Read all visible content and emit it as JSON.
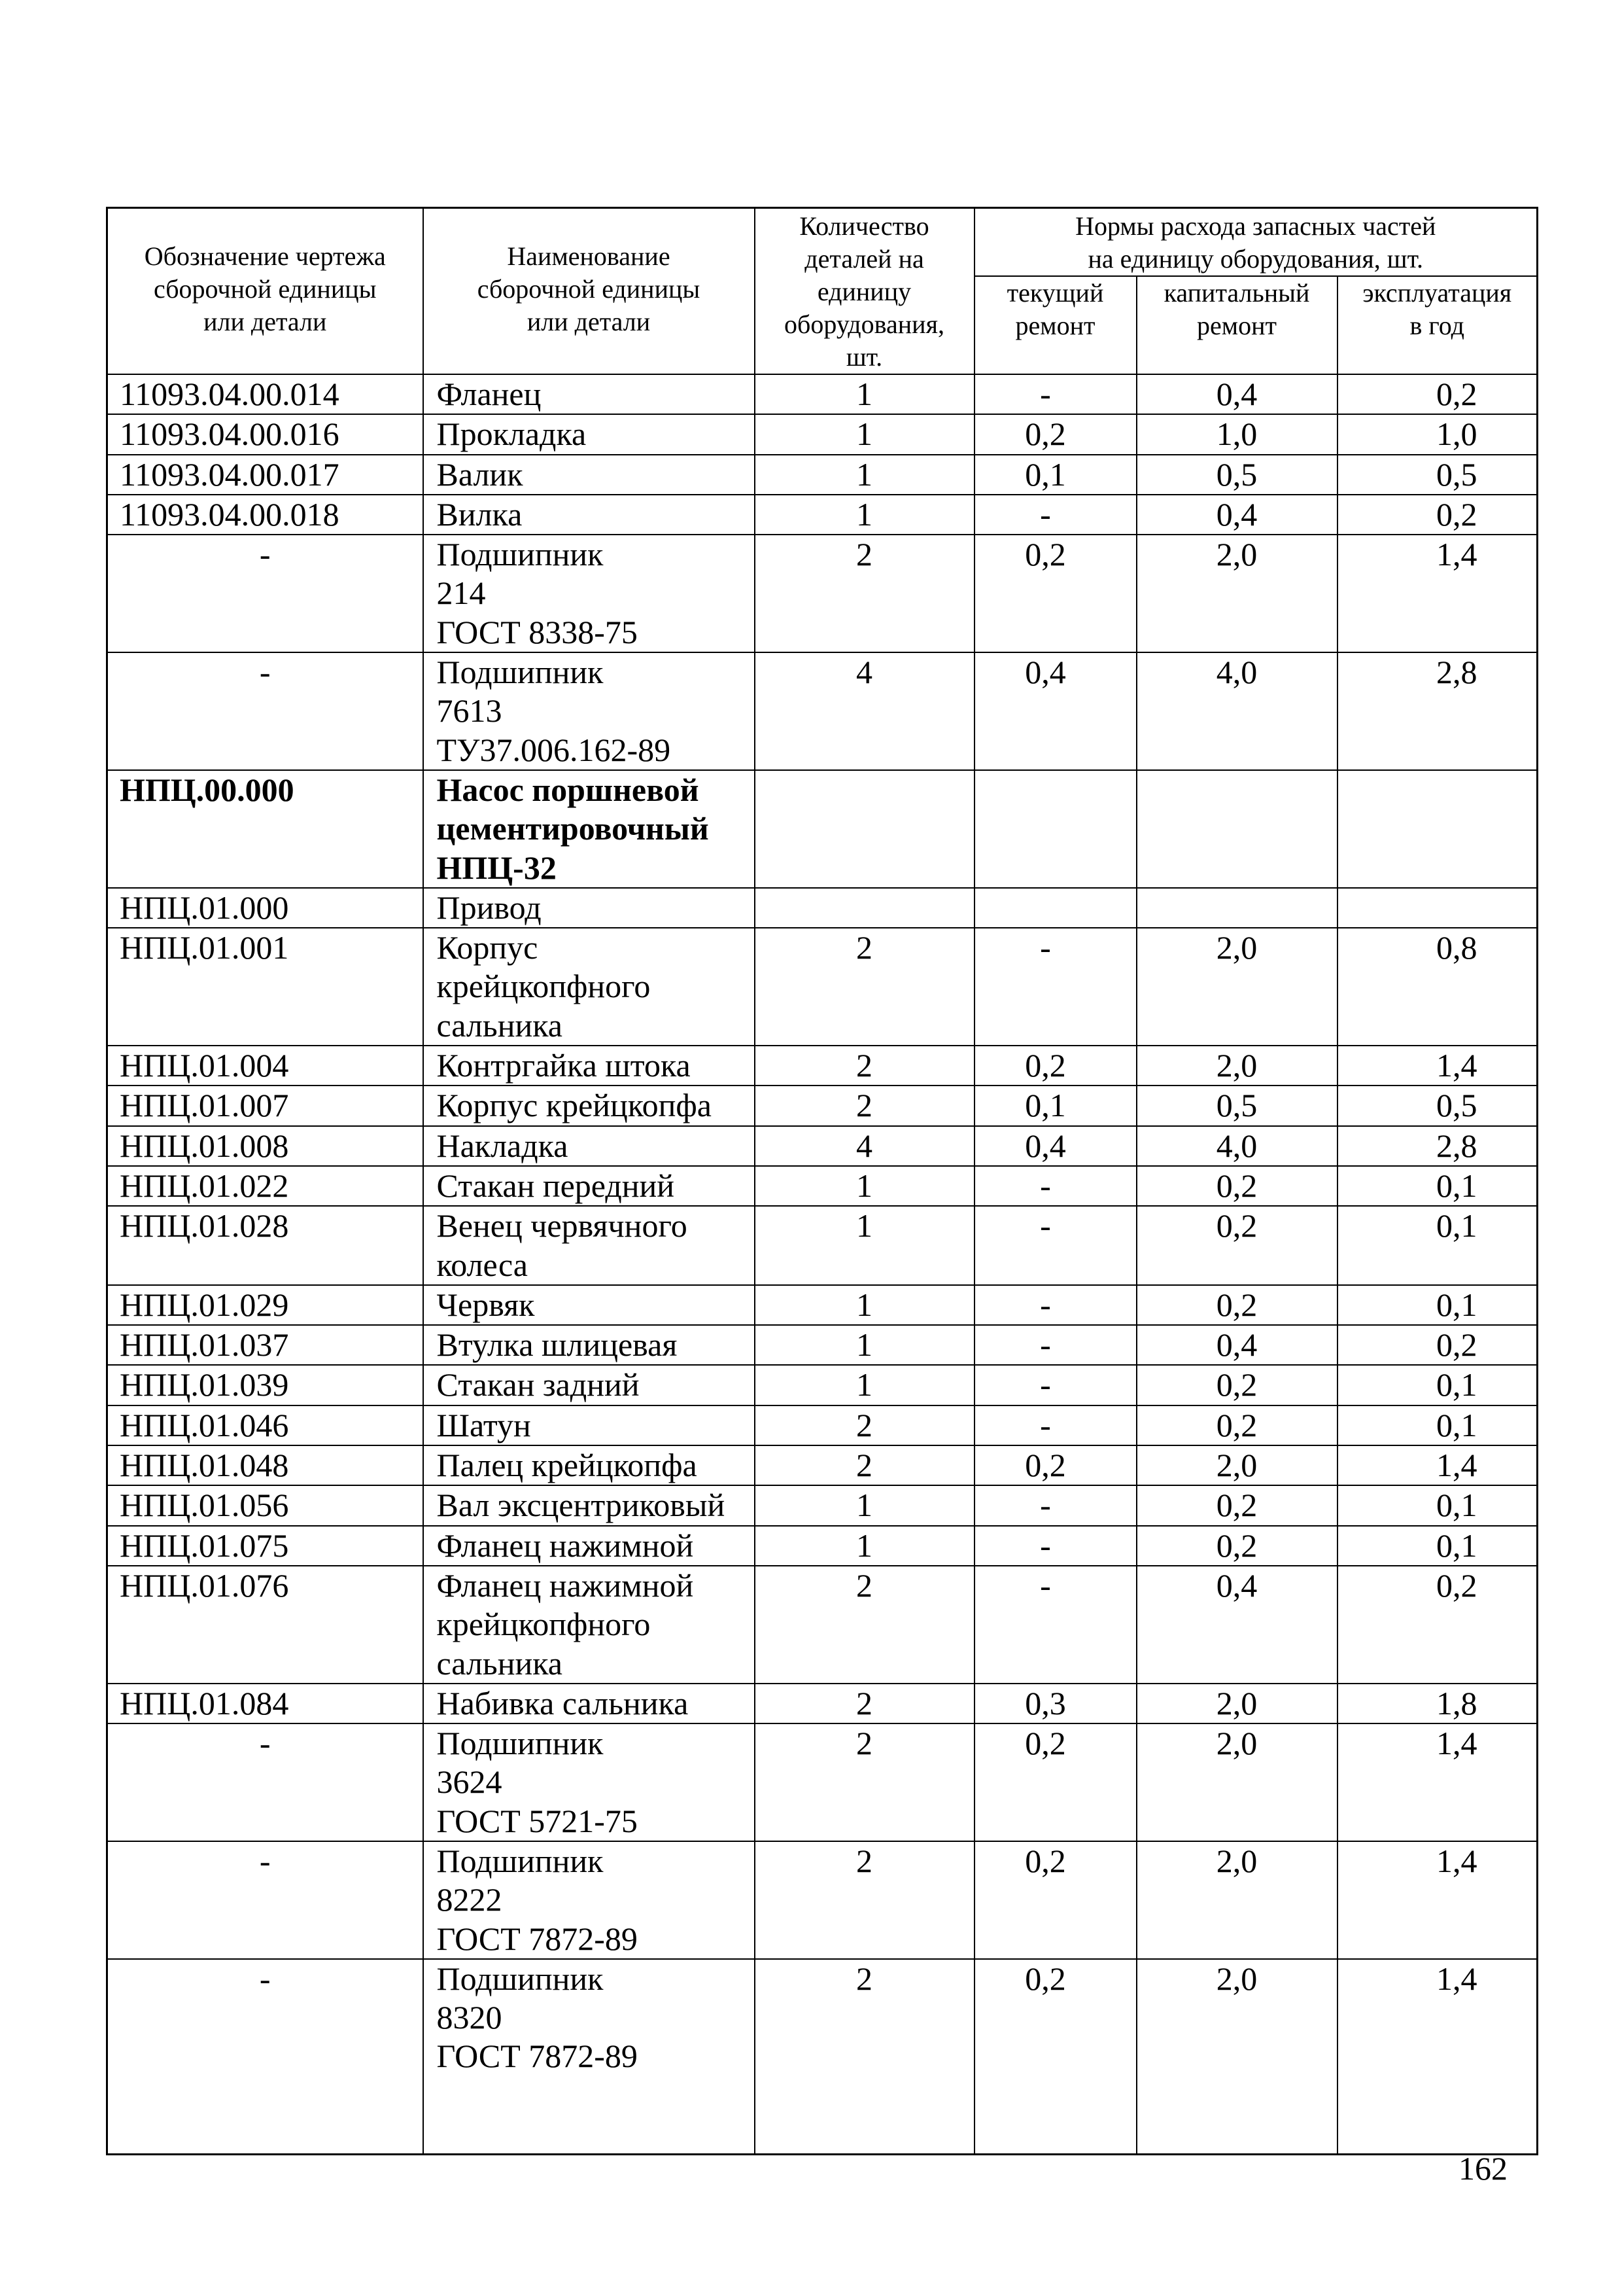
{
  "header": {
    "col_code": "Обозначение чертежа\nсборочной единицы\nили детали",
    "col_name": "Наименование\nсборочной единицы\nили детали",
    "col_qty": "Количество\nдеталей на\nединицу\nоборудования,\nшт.",
    "col_norms": "Нормы расхода запасных частей\nна единицу оборудования, шт.",
    "col_current": "текущий\nремонт",
    "col_capital": "капитальный\nремонт",
    "col_operation": "эксплуатация\nв год"
  },
  "rows": [
    {
      "code": "11093.04.00.014",
      "name": "Фланец",
      "qty": "1",
      "current": "-",
      "capital": "0,4",
      "operation": "0,2"
    },
    {
      "code": "11093.04.00.016",
      "name": "Прокладка",
      "qty": "1",
      "current": "0,2",
      "capital": "1,0",
      "operation": "1,0"
    },
    {
      "code": "11093.04.00.017",
      "name": "Валик",
      "qty": "1",
      "current": "0,1",
      "capital": "0,5",
      "operation": "0,5"
    },
    {
      "code": "11093.04.00.018",
      "name": "Вилка",
      "qty": "1",
      "current": "-",
      "capital": "0,4",
      "operation": "0,2"
    },
    {
      "code": "-",
      "name": "Подшипник\n214\nГОСТ 8338-75",
      "qty": "2",
      "current": "0,2",
      "capital": "2,0",
      "operation": "1,4"
    },
    {
      "code": "-",
      "name": "Подшипник\n7613\nТУ37.006.162-89",
      "qty": "4",
      "current": "0,4",
      "capital": "4,0",
      "operation": "2,8"
    },
    {
      "code": "НПЦ.00.000",
      "name": "Насос поршневой\nцементировочный\nНПЦ-32",
      "qty": "",
      "current": "",
      "capital": "",
      "operation": "",
      "bold": true
    },
    {
      "code": "НПЦ.01.000",
      "name": "Привод",
      "qty": "",
      "current": "",
      "capital": "",
      "operation": ""
    },
    {
      "code": "НПЦ.01.001",
      "name": "Корпус\nкрейцкопфного\nсальника",
      "qty": "2",
      "current": "-",
      "capital": "2,0",
      "operation": "0,8"
    },
    {
      "code": "НПЦ.01.004",
      "name": "Контргайка штока",
      "qty": "2",
      "current": "0,2",
      "capital": "2,0",
      "operation": "1,4"
    },
    {
      "code": "НПЦ.01.007",
      "name": "Корпус крейцкопфа",
      "qty": "2",
      "current": "0,1",
      "capital": "0,5",
      "operation": "0,5"
    },
    {
      "code": "НПЦ.01.008",
      "name": "Накладка",
      "qty": "4",
      "current": "0,4",
      "capital": "4,0",
      "operation": "2,8"
    },
    {
      "code": "НПЦ.01.022",
      "name": "Стакан передний",
      "qty": "1",
      "current": "-",
      "capital": "0,2",
      "operation": "0,1"
    },
    {
      "code": "НПЦ.01.028",
      "name": "Венец червячного\nколеса",
      "qty": "1",
      "current": "-",
      "capital": "0,2",
      "operation": "0,1"
    },
    {
      "code": "НПЦ.01.029",
      "name": "Червяк",
      "qty": "1",
      "current": "-",
      "capital": "0,2",
      "operation": "0,1"
    },
    {
      "code": "НПЦ.01.037",
      "name": "Втулка шлицевая",
      "qty": "1",
      "current": "-",
      "capital": "0,4",
      "operation": "0,2"
    },
    {
      "code": "НПЦ.01.039",
      "name": "Стакан задний",
      "qty": "1",
      "current": "-",
      "capital": "0,2",
      "operation": "0,1"
    },
    {
      "code": "НПЦ.01.046",
      "name": "Шатун",
      "qty": "2",
      "current": "-",
      "capital": "0,2",
      "operation": "0,1"
    },
    {
      "code": "НПЦ.01.048",
      "name": "Палец крейцкопфа",
      "qty": "2",
      "current": "0,2",
      "capital": "2,0",
      "operation": "1,4"
    },
    {
      "code": "НПЦ.01.056",
      "name": "Вал эксцентриковый",
      "qty": "1",
      "current": "-",
      "capital": "0,2",
      "operation": "0,1"
    },
    {
      "code": "НПЦ.01.075",
      "name": "Фланец нажимной",
      "qty": "1",
      "current": "-",
      "capital": "0,2",
      "operation": "0,1"
    },
    {
      "code": "НПЦ.01.076",
      "name": "Фланец нажимной\nкрейцкопфного\nсальника",
      "qty": "2",
      "current": "-",
      "capital": "0,4",
      "operation": "0,2"
    },
    {
      "code": "НПЦ.01.084",
      "name": "Набивка сальника",
      "qty": "2",
      "current": "0,3",
      "capital": "2,0",
      "operation": "1,8"
    },
    {
      "code": "-",
      "name": "Подшипник\n3624\nГОСТ 5721-75",
      "qty": "2",
      "current": "0,2",
      "capital": "2,0",
      "operation": "1,4"
    },
    {
      "code": "-",
      "name": "Подшипник\n8222\nГОСТ 7872-89",
      "qty": "2",
      "current": "0,2",
      "capital": "2,0",
      "operation": "1,4"
    },
    {
      "code": "-",
      "name": "Подшипник\n8320\nГОСТ 7872-89",
      "qty": "2",
      "current": "0,2",
      "capital": "2,0",
      "operation": "1,4"
    }
  ],
  "page_number": "162"
}
